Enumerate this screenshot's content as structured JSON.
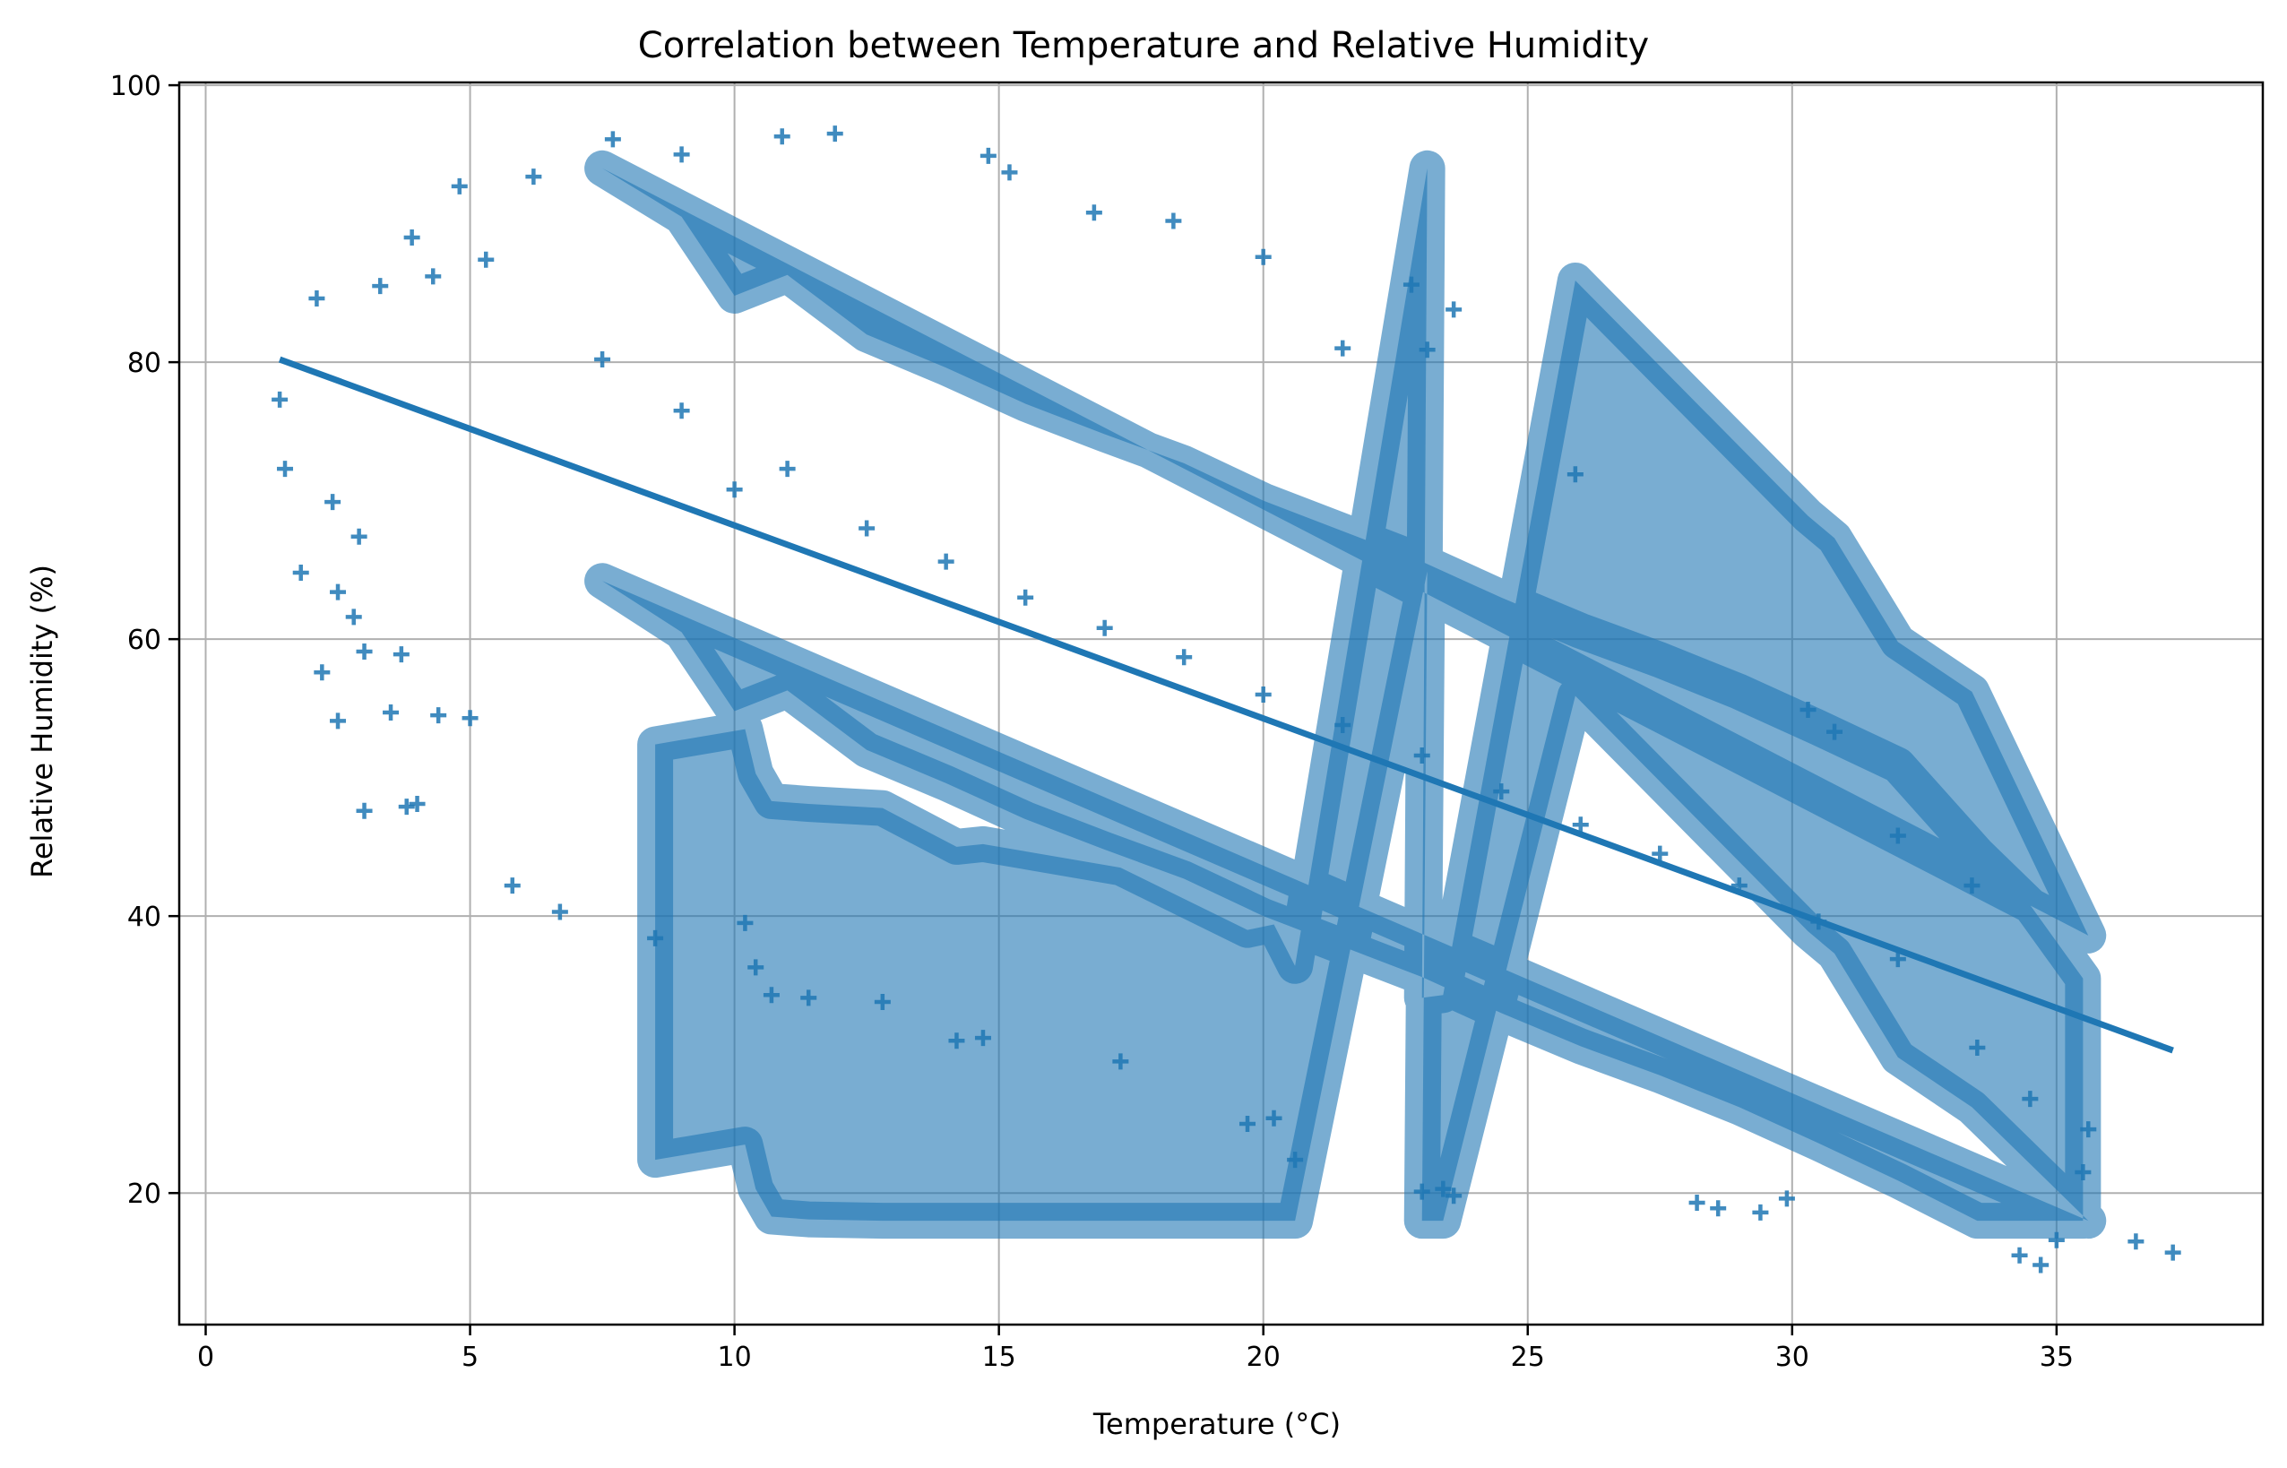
{
  "chart_data": {
    "type": "scatter",
    "title": "Correlation between Temperature and Relative Humidity",
    "xlabel": "Temperature (°C)",
    "ylabel": "Relative Humidity (%)",
    "xlim": [
      -0.5,
      38.9
    ],
    "ylim": [
      10.5,
      100.2
    ],
    "xticks": [
      0,
      5,
      10,
      15,
      20,
      25,
      30,
      35
    ],
    "yticks": [
      20,
      40,
      60,
      80,
      100
    ],
    "xtick_labels": [
      "0",
      "5",
      "10",
      "15",
      "20",
      "25",
      "30",
      "35"
    ],
    "ytick_labels": [
      "20",
      "40",
      "60",
      "80",
      "100"
    ],
    "grid": true,
    "marker": "+",
    "color": "#1f77b4",
    "series": [
      {
        "values": [
          {
            "x": 1.4,
            "y": 77.3
          },
          {
            "x": 1.5,
            "y": 72.3
          },
          {
            "x": 1.8,
            "y": 64.8
          },
          {
            "x": 2.1,
            "y": 84.6
          },
          {
            "x": 2.2,
            "y": 57.6
          },
          {
            "x": 2.4,
            "y": 69.9
          },
          {
            "x": 2.5,
            "y": 54.1
          },
          {
            "x": 2.5,
            "y": 63.4
          },
          {
            "x": 2.8,
            "y": 61.6
          },
          {
            "x": 2.9,
            "y": 67.4
          },
          {
            "x": 3.0,
            "y": 47.6
          },
          {
            "x": 3.0,
            "y": 59.1
          },
          {
            "x": 3.3,
            "y": 85.5
          },
          {
            "x": 3.5,
            "y": 54.7
          },
          {
            "x": 3.7,
            "y": 58.9
          },
          {
            "x": 3.8,
            "y": 47.9
          },
          {
            "x": 3.9,
            "y": 89.0
          },
          {
            "x": 4.0,
            "y": 48.1
          },
          {
            "x": 4.3,
            "y": 86.2
          },
          {
            "x": 4.4,
            "y": 54.5
          },
          {
            "x": 4.8,
            "y": 92.7
          },
          {
            "x": 5.0,
            "y": 54.3
          },
          {
            "x": 5.3,
            "y": 87.4
          },
          {
            "x": 5.8,
            "y": 42.2
          },
          {
            "x": 6.2,
            "y": 93.4
          },
          {
            "x": 6.7,
            "y": 40.3
          },
          {
            "x": 7.7,
            "y": 96.1
          },
          {
            "x": 8.5,
            "y": 38.4
          },
          {
            "x": 9.0,
            "y": 95.0
          },
          {
            "x": 10.2,
            "y": 39.5
          },
          {
            "x": 10.4,
            "y": 36.3
          },
          {
            "x": 10.7,
            "y": 34.3
          },
          {
            "x": 10.9,
            "y": 96.3
          },
          {
            "x": 11.4,
            "y": 34.1
          },
          {
            "x": 11.9,
            "y": 96.5
          },
          {
            "x": 12.8,
            "y": 33.8
          },
          {
            "x": 14.2,
            "y": 31.0
          },
          {
            "x": 14.7,
            "y": 31.2
          },
          {
            "x": 14.8,
            "y": 94.9
          },
          {
            "x": 15.2,
            "y": 93.7
          },
          {
            "x": 16.8,
            "y": 90.8
          },
          {
            "x": 17.3,
            "y": 29.5
          },
          {
            "x": 18.3,
            "y": 90.2
          },
          {
            "x": 19.7,
            "y": 25.0
          },
          {
            "x": 20.0,
            "y": 87.6
          },
          {
            "x": 20.2,
            "y": 25.4
          },
          {
            "x": 20.6,
            "y": 22.4
          },
          {
            "x": 21.5,
            "y": 81.0
          },
          {
            "x": 22.8,
            "y": 85.6
          },
          {
            "x": 23.1,
            "y": 80.9
          },
          {
            "x": 23.0,
            "y": 20.1
          },
          {
            "x": 23.4,
            "y": 20.3
          },
          {
            "x": 23.6,
            "y": 19.8
          },
          {
            "x": 23.6,
            "y": 83.8
          },
          {
            "x": 25.9,
            "y": 71.9
          },
          {
            "x": 28.2,
            "y": 19.3
          },
          {
            "x": 28.6,
            "y": 18.9
          },
          {
            "x": 29.4,
            "y": 18.6
          },
          {
            "x": 29.9,
            "y": 19.6
          },
          {
            "x": 30.3,
            "y": 54.9
          },
          {
            "x": 30.8,
            "y": 53.3
          },
          {
            "x": 32.0,
            "y": 45.8
          },
          {
            "x": 33.4,
            "y": 42.2
          },
          {
            "x": 34.3,
            "y": 15.5
          },
          {
            "x": 34.7,
            "y": 14.8
          },
          {
            "x": 35.0,
            "y": 16.6
          },
          {
            "x": 35.6,
            "y": 24.6
          },
          {
            "x": 36.5,
            "y": 16.5
          },
          {
            "x": 37.2,
            "y": 15.7
          },
          {
            "x": 7.5,
            "y": 80.2
          },
          {
            "x": 9.0,
            "y": 76.5
          },
          {
            "x": 10.0,
            "y": 70.8
          },
          {
            "x": 11.0,
            "y": 72.3
          },
          {
            "x": 12.5,
            "y": 68.0
          },
          {
            "x": 14.0,
            "y": 65.6
          },
          {
            "x": 15.5,
            "y": 63.0
          },
          {
            "x": 17.0,
            "y": 60.8
          },
          {
            "x": 18.5,
            "y": 58.7
          },
          {
            "x": 20.0,
            "y": 56.0
          },
          {
            "x": 21.5,
            "y": 53.8
          },
          {
            "x": 23.0,
            "y": 51.6
          },
          {
            "x": 24.5,
            "y": 49.0
          },
          {
            "x": 26.0,
            "y": 46.6
          },
          {
            "x": 27.5,
            "y": 44.5
          },
          {
            "x": 29.0,
            "y": 42.2
          },
          {
            "x": 30.5,
            "y": 39.6
          },
          {
            "x": 32.0,
            "y": 36.9
          },
          {
            "x": 33.5,
            "y": 30.5
          },
          {
            "x": 34.5,
            "y": 26.8
          },
          {
            "x": 35.5,
            "y": 21.5
          }
        ]
      },
      {
        "type": "line",
        "values": [
          {
            "x": 1.4,
            "y": 80.2
          },
          {
            "x": 37.2,
            "y": 30.3
          }
        ]
      }
    ]
  }
}
